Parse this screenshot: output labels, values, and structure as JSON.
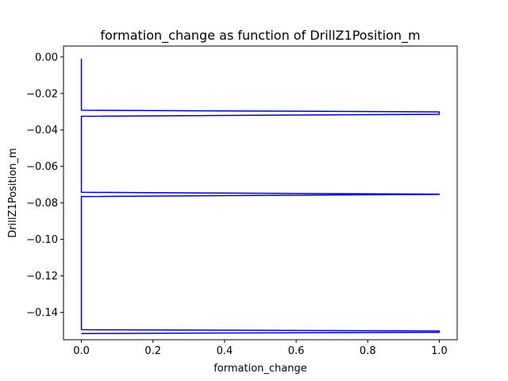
{
  "chart_data": {
    "type": "line",
    "title": "formation_change as function of DrillZ1Position_m",
    "xlabel": "formation_change",
    "ylabel": "DrillZ1Position_m",
    "xlim": [
      -0.05,
      1.05
    ],
    "ylim": [
      -0.155,
      0.006
    ],
    "xticks": [
      0.0,
      0.2,
      0.4,
      0.6,
      0.8,
      1.0
    ],
    "xtick_labels": [
      "0.0",
      "0.2",
      "0.4",
      "0.6",
      "0.8",
      "1.0"
    ],
    "yticks": [
      0.0,
      -0.02,
      -0.04,
      -0.06,
      -0.08,
      -0.1,
      -0.12,
      -0.14
    ],
    "ytick_labels": [
      "0.00",
      "−0.02",
      "−0.04",
      "−0.06",
      "−0.08",
      "−0.10",
      "−0.12",
      "−0.14"
    ],
    "grid": false,
    "series": [
      {
        "color": "#0000cc",
        "x": [
          0,
          0,
          1,
          1,
          0,
          0,
          1,
          1,
          0,
          0,
          1,
          1,
          0
        ],
        "y": [
          -0.001,
          -0.0292,
          -0.0301,
          -0.0314,
          -0.0325,
          -0.0742,
          -0.0752,
          -0.0753,
          -0.0765,
          -0.1495,
          -0.1502,
          -0.1509,
          -0.1516
        ]
      }
    ]
  }
}
